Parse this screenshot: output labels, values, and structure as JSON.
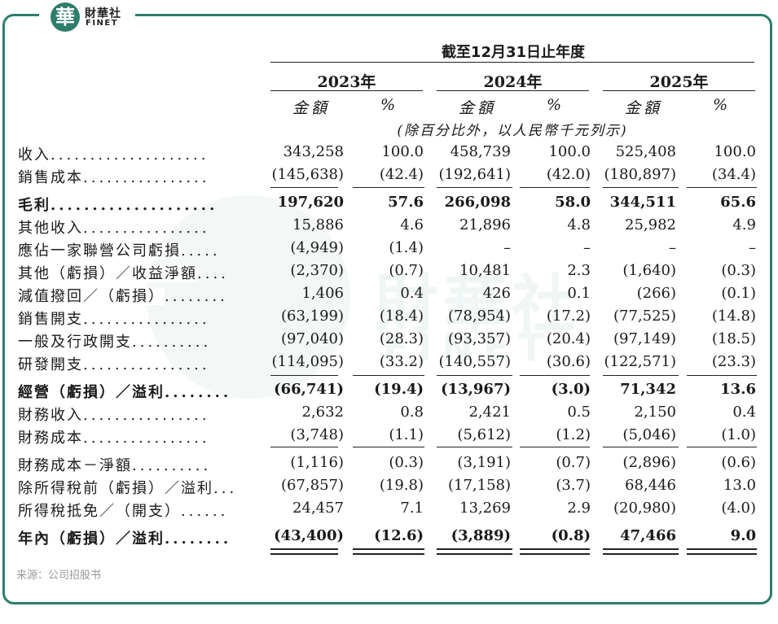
{
  "brand": {
    "seal_char": "華",
    "cn_name": "財華社",
    "en_name": "FINET"
  },
  "watermark": {
    "cn": "財華社",
    "en": "FINET"
  },
  "header": {
    "period": "截至12月31日止年度",
    "years": [
      "2023年",
      "2024年",
      "2025年"
    ],
    "amount_label": "金額",
    "pct_label": "%",
    "unit_note": "(除百分比外，以人民幣千元列示)"
  },
  "rows": [
    {
      "label": "收入",
      "dots": "....................",
      "v": [
        "343,258",
        "100.0",
        "458,739",
        "100.0",
        "525,408",
        "100.0"
      ]
    },
    {
      "label": "銷售成本",
      "dots": "................",
      "v": [
        "(145,638)",
        "(42.4)",
        "(192,641)",
        "(42.0)",
        "(180,897)",
        "(34.4)"
      ]
    },
    {
      "label": "毛利",
      "dots": "....................",
      "bold": true,
      "v": [
        "197,620",
        "57.6",
        "266,098",
        "58.0",
        "344,511",
        "65.6"
      ]
    },
    {
      "label": "其他收入",
      "dots": "................",
      "v": [
        "15,886",
        "4.6",
        "21,896",
        "4.8",
        "25,982",
        "4.9"
      ]
    },
    {
      "label": "應佔一家聯營公司虧損",
      "dots": ".....",
      "v": [
        "(4,949)",
        "(1.4)",
        "–",
        "–",
        "–",
        "–"
      ]
    },
    {
      "label": "其他（虧損）／收益淨額",
      "dots": "....",
      "v": [
        "(2,370)",
        "(0.7)",
        "10,481",
        "2.3",
        "(1,640)",
        "(0.3)"
      ]
    },
    {
      "label": "減值撥回／（虧損）",
      "dots": "........",
      "v": [
        "1,406",
        "0.4",
        "426",
        "0.1",
        "(266)",
        "(0.1)"
      ]
    },
    {
      "label": "銷售開支",
      "dots": "................",
      "v": [
        "(63,199)",
        "(18.4)",
        "(78,954)",
        "(17.2)",
        "(77,525)",
        "(14.8)"
      ]
    },
    {
      "label": "一般及行政開支",
      "dots": "..........",
      "v": [
        "(97,040)",
        "(28.3)",
        "(93,357)",
        "(20.4)",
        "(97,149)",
        "(18.5)"
      ]
    },
    {
      "label": "研發開支",
      "dots": "................",
      "v": [
        "(114,095)",
        "(33.2)",
        "(140,557)",
        "(30.6)",
        "(122,571)",
        "(23.3)"
      ]
    },
    {
      "label": "經營（虧損）／溢利",
      "dots": "........",
      "bold": true,
      "v": [
        "(66,741)",
        "(19.4)",
        "(13,967)",
        "(3.0)",
        "71,342",
        "13.6"
      ]
    },
    {
      "label": "財務收入",
      "dots": "................",
      "v": [
        "2,632",
        "0.8",
        "2,421",
        "0.5",
        "2,150",
        "0.4"
      ]
    },
    {
      "label": "財務成本",
      "dots": "................",
      "v": [
        "(3,748)",
        "(1.1)",
        "(5,612)",
        "(1.2)",
        "(5,046)",
        "(1.0)"
      ]
    },
    {
      "label": "財務成本－淨額",
      "dots": "..........",
      "v": [
        "(1,116)",
        "(0.3)",
        "(3,191)",
        "(0.7)",
        "(2,896)",
        "(0.6)"
      ]
    },
    {
      "label": "除所得稅前（虧損）／溢利",
      "dots": "...",
      "v": [
        "(67,857)",
        "(19.8)",
        "(17,158)",
        "(3.7)",
        "68,446",
        "13.0"
      ]
    },
    {
      "label": "所得稅抵免／（開支）",
      "dots": "......",
      "v": [
        "24,457",
        "7.1",
        "13,269",
        "2.9",
        "(20,980)",
        "(4.0)"
      ]
    },
    {
      "label": "年內（虧損）／溢利",
      "dots": "........",
      "bold": true,
      "v": [
        "(43,400)",
        "(12.6)",
        "(3,889)",
        "(0.8)",
        "47,466",
        "9.0"
      ]
    }
  ],
  "source": "来源：公司招股书"
}
